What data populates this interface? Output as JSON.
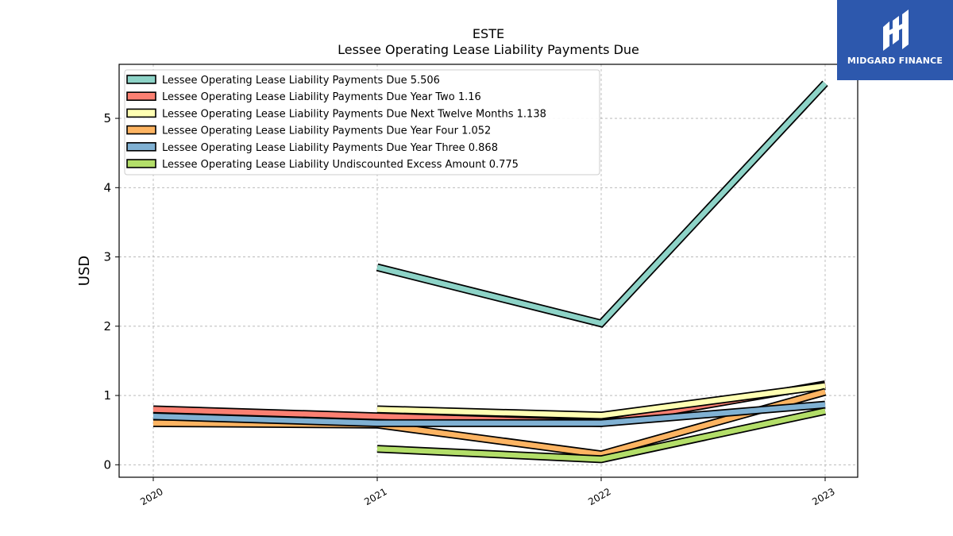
{
  "chart_data": {
    "type": "line",
    "title": "ESTE",
    "subtitle": "Lessee Operating Lease Liability Payments Due",
    "xlabel": "",
    "ylabel": "USD",
    "categories": [
      "2020",
      "2021",
      "2022",
      "2023"
    ],
    "ylim": [
      -0.18,
      5.78
    ],
    "yticks": [
      0,
      1,
      2,
      3,
      4,
      5
    ],
    "grid": true,
    "legend_position": "top-left",
    "series": [
      {
        "name": "Lessee Operating Lease Liability Payments Due  5.506",
        "color": "#8dd3c7",
        "values": [
          null,
          2.85,
          2.04,
          5.506
        ]
      },
      {
        "name": "Lessee Operating Lease Liability Payments Due Year Two  1.16",
        "color": "#fb8072",
        "values": [
          0.8,
          0.7,
          0.6,
          1.16
        ]
      },
      {
        "name": "Lessee Operating Lease Liability Payments Due Next Twelve Months  1.138",
        "color": "#ffffb3",
        "values": [
          null,
          0.8,
          0.71,
          1.138
        ]
      },
      {
        "name": "Lessee Operating Lease Liability Payments Due Year Four  1.052",
        "color": "#fdb462",
        "values": [
          0.6,
          0.58,
          0.15,
          1.052
        ]
      },
      {
        "name": "Lessee Operating Lease Liability Payments Due Year Three  0.868",
        "color": "#80b1d3",
        "values": [
          0.7,
          0.6,
          0.6,
          0.868
        ]
      },
      {
        "name": "Lessee Operating Lease Liability Undiscounted Excess Amount  0.775",
        "color": "#b3de69",
        "values": [
          null,
          0.23,
          0.08,
          0.775
        ]
      }
    ]
  },
  "logo": {
    "text": "MIDGARD FINANCE",
    "color": "#2d58ad"
  }
}
